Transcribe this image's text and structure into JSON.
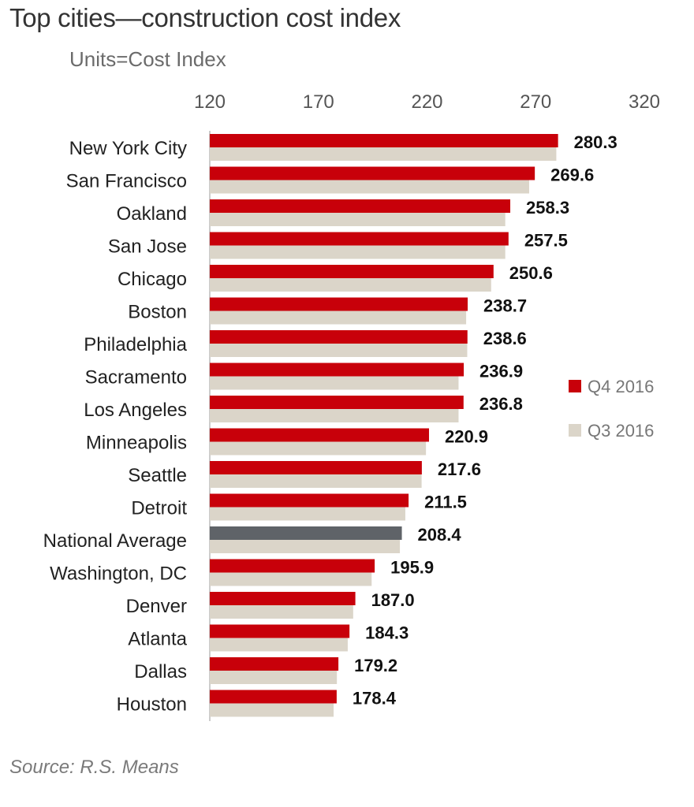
{
  "chart_data": {
    "type": "bar",
    "orientation": "horizontal",
    "title": "Top cities—construction cost index",
    "subtitle": "Units=Cost Index",
    "source": "Source: R.S. Means",
    "categories": [
      "New York City",
      "San Francisco",
      "Oakland",
      "San Jose",
      "Chicago",
      "Boston",
      "Philadelphia",
      "Sacramento",
      "Los Angeles",
      "Minneapolis",
      "Seattle",
      "Detroit",
      "National Average",
      "Washington, DC",
      "Denver",
      "Atlanta",
      "Dallas",
      "Houston"
    ],
    "series": [
      {
        "name": "Q4 2016",
        "color": "#c8000a",
        "values": [
          280.3,
          269.6,
          258.3,
          257.5,
          250.6,
          238.7,
          238.6,
          236.9,
          236.8,
          220.9,
          217.6,
          211.5,
          208.4,
          195.9,
          187.0,
          184.3,
          179.2,
          178.4
        ]
      },
      {
        "name": "Q3 2016",
        "color": "#dbd5c9",
        "values": [
          279.5,
          267.0,
          256.0,
          256.0,
          249.5,
          238.0,
          238.5,
          234.5,
          234.5,
          219.5,
          217.5,
          210.0,
          207.5,
          194.5,
          186.0,
          183.5,
          178.5,
          177.0
        ]
      }
    ],
    "data_labels": [
      "280.3",
      "269.6",
      "258.3",
      "257.5",
      "250.6",
      "238.7",
      "238.6",
      "236.9",
      "236.8",
      "220.9",
      "217.6",
      "211.5",
      "208.4",
      "195.9",
      "187.0",
      "184.3",
      "179.2",
      "178.4"
    ],
    "highlight": {
      "category": "National Average",
      "color": "#5f6368"
    },
    "xticks": [
      120,
      170,
      220,
      270,
      320
    ],
    "xlim": [
      120,
      320
    ],
    "grid": false,
    "legend_position": "right"
  }
}
